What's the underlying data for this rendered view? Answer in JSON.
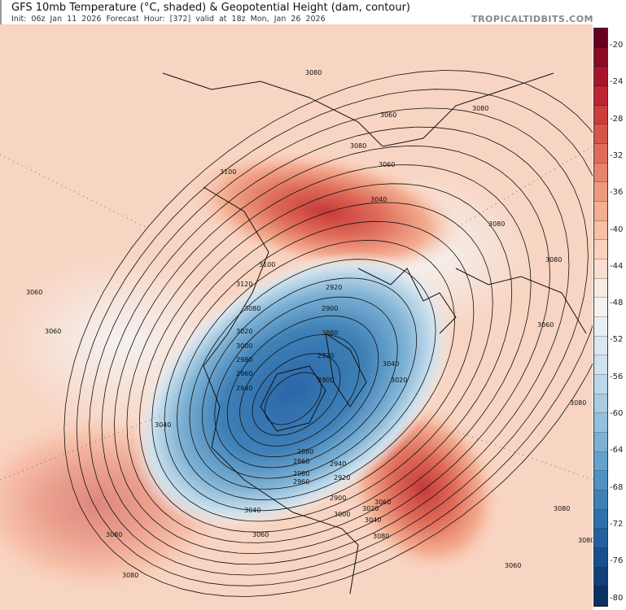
{
  "header": {
    "title": "GFS 10mb Temperature (°C, shaded) & Geopotential Height (dam, contour)",
    "subtitle": "Init: 06z Jan 11 2026   Forecast Hour: [372]   valid at 18z Mon, Jan 26 2026",
    "brand": "TROPICALTIDBITS.COM"
  },
  "colorbar": {
    "unit": "°C",
    "min": -80,
    "max": -20,
    "step": 2,
    "tick_labels": [
      "-20",
      "-24",
      "-28",
      "-32",
      "-36",
      "-40",
      "-44",
      "-48",
      "-52",
      "-56",
      "-60",
      "-64",
      "-68",
      "-72",
      "-76",
      "-80"
    ],
    "colors": [
      "#67001f",
      "#8a0b25",
      "#a8152b",
      "#be2532",
      "#cc3d3d",
      "#d6554b",
      "#df6c5a",
      "#e8836b",
      "#ef9a7e",
      "#f4ae92",
      "#f7c1a8",
      "#f9d1bd",
      "#fadfd1",
      "#f8ebe4",
      "#f4f3f2",
      "#e8eff4",
      "#dbe8f1",
      "#cde1ee",
      "#bcd7e9",
      "#a9cce3",
      "#94c0dc",
      "#7db1d4",
      "#65a2cb",
      "#5092c1",
      "#3f81b7",
      "#3070ad",
      "#2460a1",
      "#1a4f8f",
      "#12407a",
      "#0a3163"
    ]
  },
  "map": {
    "contour_labels": [
      "3080",
      "3080",
      "3080",
      "3060",
      "3060",
      "3040",
      "3080",
      "3100",
      "3100",
      "3120",
      "3080",
      "3060",
      "3060",
      "3040",
      "3020",
      "3000",
      "2980",
      "2960",
      "2940",
      "2920",
      "2900",
      "2880",
      "2920",
      "2900",
      "2880",
      "2860",
      "2980",
      "2960",
      "2940",
      "2920",
      "2900",
      "3000",
      "3020",
      "3040",
      "3060",
      "3080",
      "3040",
      "3060",
      "3080",
      "3020",
      "3040",
      "3060",
      "3080",
      "3080",
      "3080",
      "3080",
      "3060",
      "3080"
    ]
  }
}
